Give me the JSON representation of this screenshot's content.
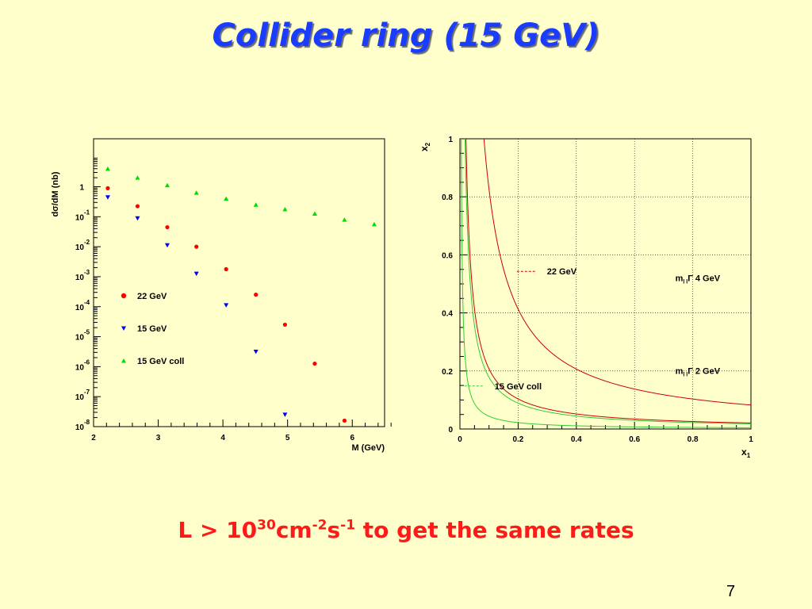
{
  "slide": {
    "title": "Collider ring (15 GeV)",
    "bottom_text": {
      "prefix": "L > 10",
      "exp1": "30",
      "unit_cm": "cm",
      "exp2": "-2",
      "unit_s": "s",
      "exp3": "-1",
      "suffix": " to get the same rates"
    },
    "page_number": "7"
  },
  "chart_data": [
    {
      "type": "scatter",
      "title": "",
      "xlabel": "M   (GeV)",
      "ylabel": "dσ/dM (nb)",
      "log_y": true,
      "xlim": [
        2,
        6.5
      ],
      "ylim_exp": [
        -8,
        1.6
      ],
      "x_ticks": [
        "2",
        "3",
        "4",
        "5",
        "6"
      ],
      "y_ticks": [
        {
          "exp": 0,
          "base": "1",
          "sup": ""
        },
        {
          "exp": -1,
          "base": "10",
          "sup": "-1"
        },
        {
          "exp": -2,
          "base": "10",
          "sup": "-2"
        },
        {
          "exp": -3,
          "base": "10",
          "sup": "-3"
        },
        {
          "exp": -4,
          "base": "10",
          "sup": "-4"
        },
        {
          "exp": -5,
          "base": "10",
          "sup": "-5"
        },
        {
          "exp": -6,
          "base": "10",
          "sup": "-6"
        },
        {
          "exp": -7,
          "base": "10",
          "sup": "-7"
        },
        {
          "exp": -8,
          "base": "10",
          "sup": "-8"
        }
      ],
      "legend_position": "lower-left",
      "series": [
        {
          "name": "22 GeV",
          "color": "#ff0000",
          "marker": "circle",
          "x": [
            2.22,
            2.68,
            3.14,
            3.59,
            4.05,
            4.51,
            4.96,
            5.42,
            5.88
          ],
          "y_exp": [
            -0.05,
            -0.65,
            -1.35,
            -2.0,
            -2.75,
            -3.6,
            -4.6,
            -5.9,
            -7.8
          ]
        },
        {
          "name": "15 GeV",
          "color": "#0000ff",
          "marker": "triangle-down",
          "x": [
            2.22,
            2.68,
            3.14,
            3.59,
            4.05,
            4.51,
            4.96
          ],
          "y_exp": [
            -0.35,
            -1.05,
            -1.95,
            -2.9,
            -3.95,
            -5.5,
            -7.6
          ]
        },
        {
          "name": "15 GeV coll",
          "color": "#00dd00",
          "marker": "triangle-up",
          "x": [
            2.22,
            2.68,
            3.14,
            3.59,
            4.05,
            4.51,
            4.96,
            5.42,
            5.88,
            6.34
          ],
          "y_exp": [
            0.6,
            0.3,
            0.05,
            -0.2,
            -0.4,
            -0.6,
            -0.75,
            -0.9,
            -1.1,
            -1.25
          ]
        }
      ]
    },
    {
      "type": "line",
      "title": "",
      "xlabel": "x",
      "xlabel_sub": "1",
      "ylabel": "x",
      "ylabel_sub": "2",
      "xlim": [
        0,
        1
      ],
      "ylim": [
        0,
        1
      ],
      "grid": true,
      "x_ticks": [
        "0",
        "0.2",
        "0.4",
        "0.6",
        "0.8",
        "1"
      ],
      "y_ticks": [
        "0",
        "0.2",
        "0.4",
        "0.6",
        "0.8",
        "1"
      ],
      "series": [
        {
          "name": "22 GeV",
          "color": "#cc0000",
          "formula": "x1*x2 = c",
          "c": [
            0.0826,
            0.0207
          ]
        },
        {
          "name": "15 GeV coll",
          "color": "#33cc33",
          "formula": "x1*x2 = c",
          "c": [
            0.0044,
            0.0178
          ]
        }
      ],
      "annotations": [
        {
          "text": "m",
          "sub": "l l",
          "mid": "Γ",
          "post": " 4 GeV",
          "x": 0.74,
          "y": 0.51
        },
        {
          "text": "m",
          "sub": "l l",
          "mid": "Γ",
          "post": " 2 GeV",
          "x": 0.74,
          "y": 0.19
        }
      ],
      "legend": [
        {
          "label": "22 GeV",
          "color": "#cc0000",
          "x": 0.31,
          "y": 0.535
        },
        {
          "label": "15 GeV coll",
          "color": "#33cc33",
          "x": 0.13,
          "y": 0.14
        }
      ]
    }
  ]
}
